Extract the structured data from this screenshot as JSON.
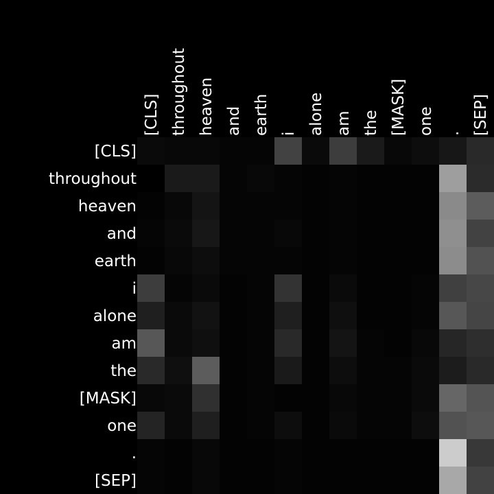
{
  "chart_data": {
    "type": "heatmap",
    "title": "",
    "xlabel": "",
    "ylabel": "",
    "colormap": "grayscale",
    "value_range": [
      0,
      1
    ],
    "x_labels": [
      "[CLS]",
      "throughout",
      "heaven",
      "and",
      "earth",
      "i",
      "alone",
      "am",
      "the",
      "[MASK]",
      "one",
      ".",
      "[SEP]"
    ],
    "y_labels": [
      "[CLS]",
      "throughout",
      "heaven",
      "and",
      "earth",
      "i",
      "alone",
      "am",
      "the",
      "[MASK]",
      "one",
      ".",
      "[SEP]"
    ],
    "values": [
      [
        0.04,
        0.03,
        0.03,
        0.02,
        0.02,
        0.26,
        0.04,
        0.24,
        0.1,
        0.03,
        0.05,
        0.09,
        0.16
      ],
      [
        0.0,
        0.1,
        0.1,
        0.02,
        0.03,
        0.02,
        0.01,
        0.02,
        0.01,
        0.01,
        0.01,
        0.62,
        0.17
      ],
      [
        0.01,
        0.03,
        0.08,
        0.02,
        0.02,
        0.02,
        0.01,
        0.02,
        0.01,
        0.01,
        0.01,
        0.54,
        0.36
      ],
      [
        0.02,
        0.04,
        0.09,
        0.02,
        0.02,
        0.03,
        0.01,
        0.02,
        0.01,
        0.01,
        0.01,
        0.56,
        0.26
      ],
      [
        0.01,
        0.03,
        0.05,
        0.02,
        0.02,
        0.02,
        0.01,
        0.02,
        0.01,
        0.01,
        0.01,
        0.55,
        0.32
      ],
      [
        0.24,
        0.02,
        0.04,
        0.01,
        0.02,
        0.2,
        0.01,
        0.04,
        0.01,
        0.01,
        0.02,
        0.25,
        0.28
      ],
      [
        0.12,
        0.04,
        0.07,
        0.01,
        0.02,
        0.12,
        0.01,
        0.06,
        0.01,
        0.01,
        0.02,
        0.34,
        0.27
      ],
      [
        0.34,
        0.04,
        0.06,
        0.01,
        0.02,
        0.16,
        0.01,
        0.08,
        0.02,
        0.01,
        0.03,
        0.15,
        0.18
      ],
      [
        0.16,
        0.06,
        0.36,
        0.01,
        0.02,
        0.1,
        0.01,
        0.05,
        0.02,
        0.02,
        0.04,
        0.11,
        0.16
      ],
      [
        0.03,
        0.04,
        0.19,
        0.01,
        0.02,
        0.01,
        0.01,
        0.03,
        0.02,
        0.02,
        0.04,
        0.4,
        0.33
      ],
      [
        0.14,
        0.04,
        0.12,
        0.01,
        0.02,
        0.05,
        0.01,
        0.04,
        0.02,
        0.02,
        0.05,
        0.32,
        0.34
      ],
      [
        0.02,
        0.01,
        0.03,
        0.01,
        0.01,
        0.02,
        0.01,
        0.01,
        0.01,
        0.01,
        0.01,
        0.8,
        0.22
      ],
      [
        0.02,
        0.01,
        0.03,
        0.01,
        0.01,
        0.02,
        0.01,
        0.01,
        0.01,
        0.01,
        0.01,
        0.66,
        0.26
      ]
    ]
  }
}
